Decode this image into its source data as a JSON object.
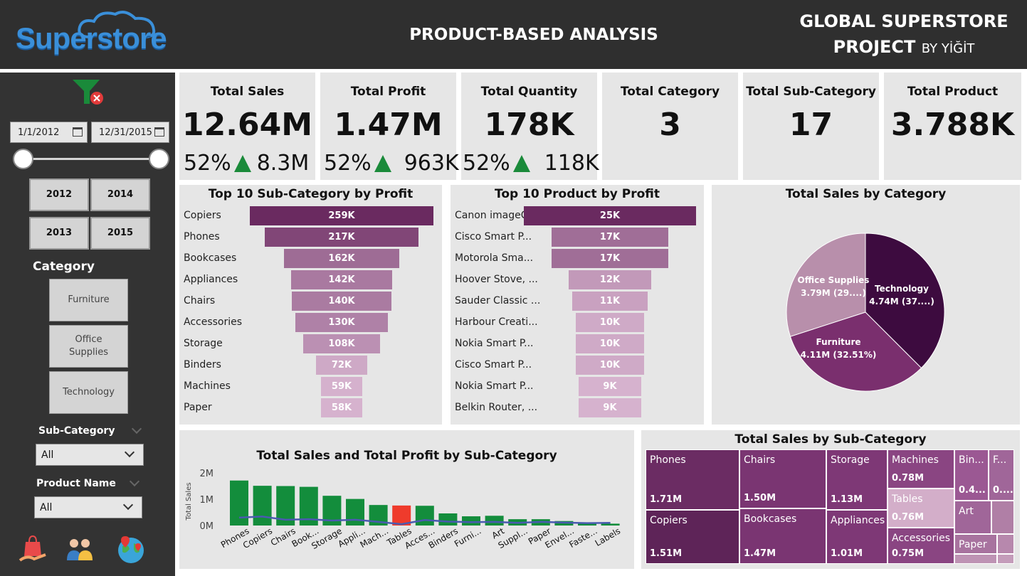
{
  "header": {
    "logo": "Superstore",
    "page_title": "PRODUCT-BASED ANALYSIS",
    "project_line1": "GLOBAL SUPERSTORE",
    "project_line2": "PROJECT",
    "project_by": "BY YİĞİT"
  },
  "sidebar": {
    "date_start": "1/1/2012",
    "date_end": "12/31/2015",
    "years": [
      "2012",
      "2014",
      "2013",
      "2015"
    ],
    "category_label": "Category",
    "categories": [
      "Furniture",
      "Office Supplies",
      "Technology"
    ],
    "subcategory_label": "Sub-Category",
    "subcategory_value": "All",
    "product_label": "Product Name",
    "product_value": "All",
    "icons": [
      "shopping-bag-icon",
      "team-icon",
      "globe-location-icon"
    ]
  },
  "kpis": [
    {
      "title": "Total Sales",
      "value": "12.64M",
      "pct": "52%",
      "delta": "8.3M"
    },
    {
      "title": "Total Profit",
      "value": "1.47M",
      "pct": "52%",
      "delta": "963K"
    },
    {
      "title": "Total Quantity",
      "value": "178K",
      "pct": "52%",
      "delta": "118K"
    },
    {
      "title": "Total Category",
      "value": "3"
    },
    {
      "title": "Total Sub-Category",
      "value": "17"
    },
    {
      "title": "Total Product",
      "value": "3.788K"
    }
  ],
  "top_subcat": {
    "title": "Top 10 Sub-Category by Profit",
    "items": [
      {
        "label": "Copiers",
        "value": 259,
        "text": "259K"
      },
      {
        "label": "Phones",
        "value": 217,
        "text": "217K"
      },
      {
        "label": "Bookcases",
        "value": 162,
        "text": "162K"
      },
      {
        "label": "Appliances",
        "value": 142,
        "text": "142K"
      },
      {
        "label": "Chairs",
        "value": 140,
        "text": "140K"
      },
      {
        "label": "Accessories",
        "value": 130,
        "text": "130K"
      },
      {
        "label": "Storage",
        "value": 108,
        "text": "108K"
      },
      {
        "label": "Binders",
        "value": 72,
        "text": "72K"
      },
      {
        "label": "Machines",
        "value": 59,
        "text": "59K"
      },
      {
        "label": "Paper",
        "value": 58,
        "text": "58K"
      }
    ]
  },
  "top_product": {
    "title": "Top 10 Product by Profit",
    "items": [
      {
        "label": "Canon imageC...",
        "value": 25,
        "text": "25K"
      },
      {
        "label": "Cisco Smart P...",
        "value": 17,
        "text": "17K"
      },
      {
        "label": "Motorola Sma...",
        "value": 17,
        "text": "17K"
      },
      {
        "label": "Hoover Stove, ...",
        "value": 12,
        "text": "12K"
      },
      {
        "label": "Sauder Classic ...",
        "value": 11,
        "text": "11K"
      },
      {
        "label": "Harbour Creati...",
        "value": 10,
        "text": "10K"
      },
      {
        "label": "Nokia Smart P...",
        "value": 10,
        "text": "10K"
      },
      {
        "label": "Cisco Smart P...",
        "value": 10,
        "text": "10K"
      },
      {
        "label": "Nokia Smart P...",
        "value": 9,
        "text": "9K"
      },
      {
        "label": "Belkin Router, ...",
        "value": 9,
        "text": "9K"
      }
    ]
  },
  "pie": {
    "title": "Total Sales by Category",
    "slices": [
      {
        "name": "Technology",
        "label": "4.74M (37....)",
        "value": 4.74,
        "color": "#3d0b3f"
      },
      {
        "name": "Furniture",
        "label": "4.11M (32.51%)",
        "value": 4.11,
        "color": "#7a2f6e"
      },
      {
        "name": "Office Supplies",
        "label": "3.79M (29....)",
        "value": 3.79,
        "color": "#b88fab"
      }
    ]
  },
  "combo": {
    "title": "Total Sales and Total Profit by Sub-Category",
    "ylabel": "Total Sales",
    "yticks": [
      "2M",
      "1M",
      "0M"
    ],
    "categories": [
      "Phones",
      "Copiers",
      "Chairs",
      "Book...",
      "Storage",
      "Appli...",
      "Mach...",
      "Tables",
      "Acces...",
      "Binders",
      "Furni...",
      "Art",
      "Suppl...",
      "Paper",
      "Envel...",
      "Faste...",
      "Labels"
    ],
    "sales": [
      1.71,
      1.51,
      1.5,
      1.47,
      1.13,
      1.01,
      0.78,
      0.76,
      0.75,
      0.46,
      0.35,
      0.37,
      0.24,
      0.24,
      0.17,
      0.08,
      0.07
    ],
    "profit": [
      0.22,
      0.26,
      0.14,
      0.16,
      0.11,
      0.14,
      0.06,
      -0.06,
      0.13,
      0.07,
      0.05,
      0.06,
      0.02,
      0.06,
      0.03,
      0.01,
      0.02
    ],
    "bar_color": "#138d3c",
    "negative_color": "#ef3b2c",
    "line_color": "#4a5ab0"
  },
  "treemap": {
    "title": "Total Sales by Sub-Category",
    "cells": [
      {
        "name": "Phones",
        "value": "1.71M"
      },
      {
        "name": "Copiers",
        "value": "1.51M"
      },
      {
        "name": "Chairs",
        "value": "1.50M"
      },
      {
        "name": "Bookcases",
        "value": "1.47M"
      },
      {
        "name": "Storage",
        "value": "1.13M"
      },
      {
        "name": "Appliances",
        "value": "1.01M"
      },
      {
        "name": "Machines",
        "value": "0.78M"
      },
      {
        "name": "Tables",
        "value": "0.76M"
      },
      {
        "name": "Accessories",
        "value": "0.75M"
      },
      {
        "name": "Bin...",
        "value": "0.4..."
      },
      {
        "name": "F...",
        "value": "0...."
      },
      {
        "name": "Art",
        "value": ""
      },
      {
        "name": "Paper",
        "value": ""
      }
    ]
  }
}
